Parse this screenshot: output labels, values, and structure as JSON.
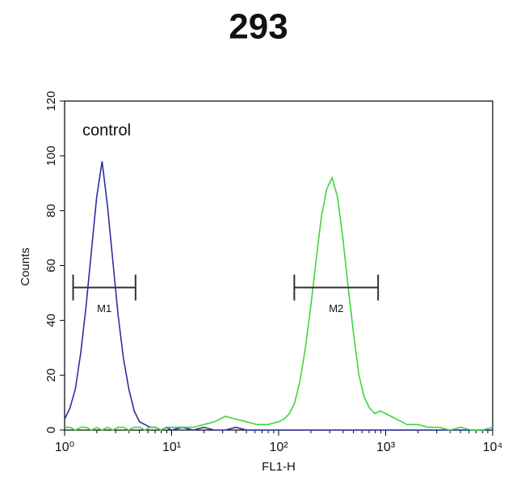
{
  "chart_data": {
    "type": "line",
    "title": "293",
    "x_label": "FL1-H",
    "y_label": "Counts",
    "x_scale": "log",
    "x": [
      1,
      1.122,
      1.259,
      1.413,
      1.585,
      1.778,
      1.995,
      2.239,
      2.512,
      2.818,
      3.162,
      3.548,
      3.981,
      4.467,
      5.012,
      5.623,
      6.31,
      7.079,
      7.943,
      8.913,
      10,
      12.59,
      15.85,
      19.95,
      25.12,
      31.62,
      39.81,
      50.12,
      63.1,
      79.43,
      100,
      112.2,
      125.9,
      141.3,
      158.5,
      177.8,
      199.5,
      223.9,
      251.2,
      281.8,
      316.2,
      354.8,
      398.1,
      446.7,
      501.2,
      562.3,
      631,
      707.9,
      794.3,
      891.3,
      1000,
      1122,
      1259,
      1413,
      1585,
      1995,
      2512,
      3162,
      3981,
      5012,
      6310,
      7943,
      10000
    ],
    "series": [
      {
        "name": "control",
        "color": "#2b2f9e",
        "values": [
          4,
          8,
          15,
          28,
          45,
          65,
          85,
          98,
          82,
          62,
          42,
          26,
          15,
          7,
          3,
          2,
          1,
          1,
          0,
          1,
          0,
          1,
          0,
          1,
          0,
          0,
          1,
          0,
          0,
          0,
          0,
          0,
          0,
          0,
          0,
          0,
          0,
          0,
          0,
          0,
          0,
          0,
          0,
          0,
          0,
          0,
          0,
          0,
          0,
          0,
          0,
          0,
          0,
          0,
          0,
          0,
          0,
          0,
          0,
          0,
          0,
          0,
          0
        ]
      },
      {
        "color": "#3fd43f",
        "values": [
          1,
          1,
          0,
          1,
          1,
          0,
          1,
          0,
          1,
          0,
          1,
          1,
          0,
          1,
          1,
          0,
          1,
          1,
          0,
          1,
          1,
          1,
          1,
          2,
          3,
          5,
          4,
          3,
          2,
          2,
          3,
          4,
          6,
          10,
          18,
          30,
          45,
          62,
          78,
          88,
          92,
          85,
          70,
          52,
          35,
          20,
          12,
          8,
          6,
          7,
          6,
          5,
          4,
          3,
          2,
          2,
          1,
          1,
          0,
          1,
          0,
          0,
          1
        ]
      }
    ],
    "gates": [
      {
        "label": "M1",
        "x": [
          1.2,
          4.6
        ],
        "y": 52
      },
      {
        "label": "M2",
        "x": [
          140,
          850
        ],
        "y": 52
      }
    ],
    "xlim": [
      1,
      10000
    ],
    "xticks": [
      {
        "value": 1,
        "label": "10⁰"
      },
      {
        "value": 10,
        "label": "10¹"
      },
      {
        "value": 100,
        "label": "10²"
      },
      {
        "value": 1000,
        "label": "10³"
      },
      {
        "value": 10000,
        "label": "10⁴"
      }
    ],
    "ylim": [
      0,
      120
    ],
    "yticks": [
      0,
      20,
      40,
      60,
      80,
      100,
      120
    ]
  }
}
